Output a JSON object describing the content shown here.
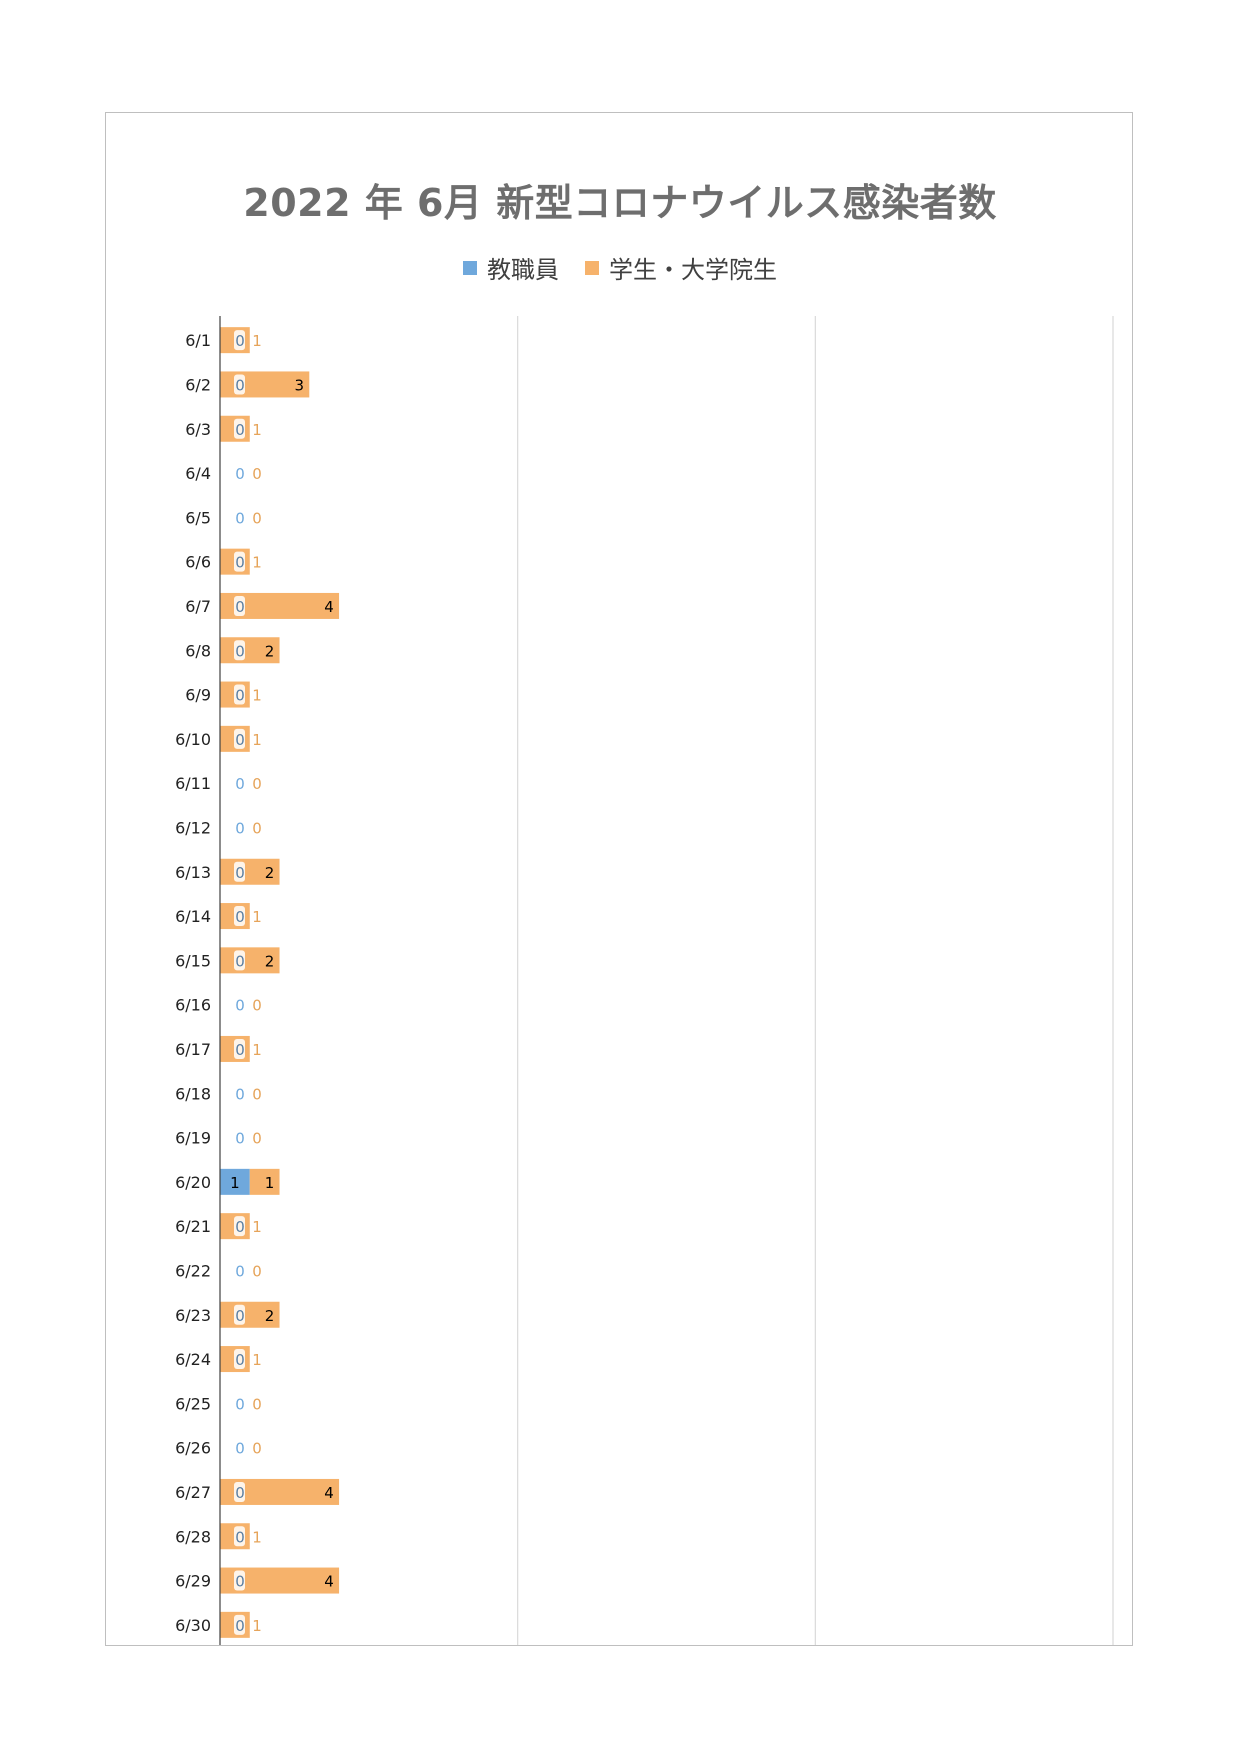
{
  "chart_data": {
    "type": "bar",
    "orientation": "horizontal",
    "stacked": true,
    "title": "2022 年 6月 新型コロナウイルス感染者数",
    "legend_position": "top",
    "categories": [
      "6/1",
      "6/2",
      "6/3",
      "6/4",
      "6/5",
      "6/6",
      "6/7",
      "6/8",
      "6/9",
      "6/10",
      "6/11",
      "6/12",
      "6/13",
      "6/14",
      "6/15",
      "6/16",
      "6/17",
      "6/18",
      "6/19",
      "6/20",
      "6/21",
      "6/22",
      "6/23",
      "6/24",
      "6/25",
      "6/26",
      "6/27",
      "6/28",
      "6/29",
      "6/30"
    ],
    "series": [
      {
        "name": "教職員",
        "color": "#6fa8dc",
        "values": [
          0,
          0,
          0,
          0,
          0,
          0,
          0,
          0,
          0,
          0,
          0,
          0,
          0,
          0,
          0,
          0,
          0,
          0,
          0,
          1,
          0,
          0,
          0,
          0,
          0,
          0,
          0,
          0,
          0,
          0
        ]
      },
      {
        "name": "学生・大学院生",
        "color": "#f6b26b",
        "values": [
          1,
          3,
          1,
          0,
          0,
          1,
          4,
          2,
          1,
          1,
          0,
          0,
          2,
          1,
          2,
          0,
          1,
          0,
          0,
          1,
          1,
          0,
          2,
          1,
          0,
          0,
          4,
          1,
          4,
          1
        ]
      }
    ],
    "xlim": [
      0,
      30
    ],
    "grid": true
  }
}
